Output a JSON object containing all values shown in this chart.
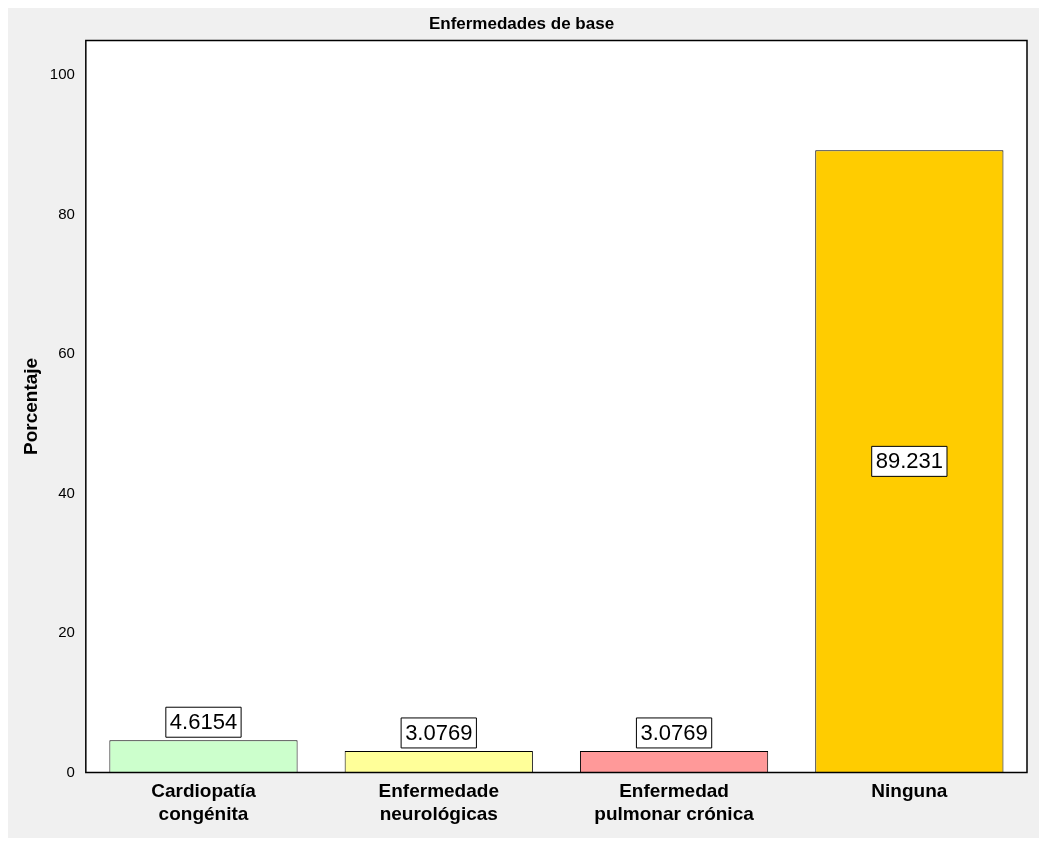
{
  "chart_data": {
    "type": "bar",
    "title": "Enfermedades de base",
    "ylabel": "Porcentaje",
    "categories": [
      "Cardiopatía congénita",
      "Enfermedade neurológicas",
      "Enfermedad pulmonar crónica",
      "Ninguna"
    ],
    "values": [
      4.6154,
      3.0769,
      3.0769,
      89.231
    ],
    "colors": [
      "#ccffcc",
      "#ffff99",
      "#ff9999",
      "#ffcc00"
    ],
    "ylim": [
      0,
      105
    ],
    "yticks": [
      0,
      20,
      40,
      60,
      80,
      100
    ],
    "grid": false,
    "legend": false,
    "data_labels": true
  }
}
